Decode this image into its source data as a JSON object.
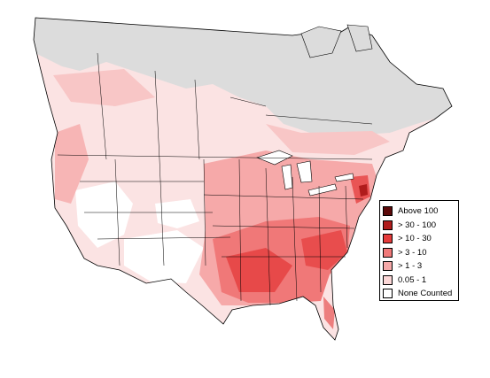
{
  "map": {
    "colors": {
      "no_data": "#dcdcdc",
      "background": "#ffffff",
      "border": "#000000"
    }
  },
  "legend": {
    "items": [
      {
        "label": "Above 100",
        "color": "#5c0a0a"
      },
      {
        "label": "> 30 - 100",
        "color": "#b01c1c"
      },
      {
        "label": "> 10 - 30",
        "color": "#e43a3a"
      },
      {
        "label": "> 3 - 10",
        "color": "#f07878"
      },
      {
        "label": "> 1 - 3",
        "color": "#f6a9a9"
      },
      {
        "label": "0.05 - 1",
        "color": "#fbd7d7"
      },
      {
        "label": "None Counted",
        "color": "#ffffff"
      }
    ]
  }
}
